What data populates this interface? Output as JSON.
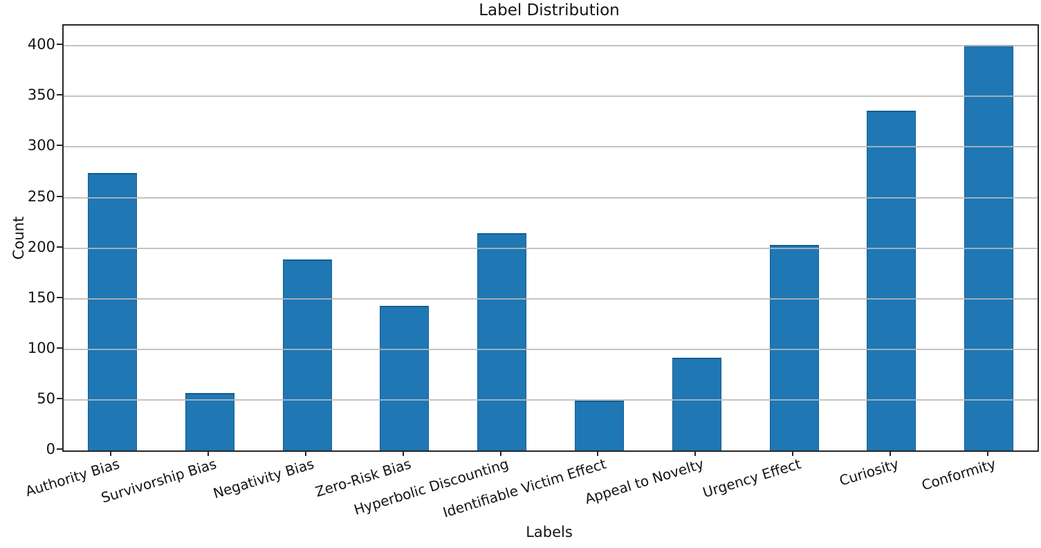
{
  "chart_data": {
    "type": "bar",
    "title": "Label Distribution",
    "xlabel": "Labels",
    "ylabel": "Count",
    "categories": [
      "Authority Bias",
      "Survivorship Bias",
      "Negativity Bias",
      "Zero-Risk Bias",
      "Hyperbolic Discounting",
      "Identifiable Victim Effect",
      "Appeal to Novelty",
      "Urgency Effect",
      "Curiosity",
      "Conformity"
    ],
    "values": [
      274,
      57,
      189,
      143,
      215,
      49,
      92,
      203,
      336,
      401
    ],
    "yticks": [
      0,
      50,
      100,
      150,
      200,
      250,
      300,
      350,
      400
    ],
    "ylim": [
      0,
      420
    ],
    "grid": true,
    "legend_position": "none",
    "bar_color": "#1f77b4",
    "bar_edge_color": "#155d91",
    "grid_color": "#b9b9b9",
    "axis_color": "#262626",
    "text_color": "#141414",
    "x_tick_rotation_deg": 17
  }
}
